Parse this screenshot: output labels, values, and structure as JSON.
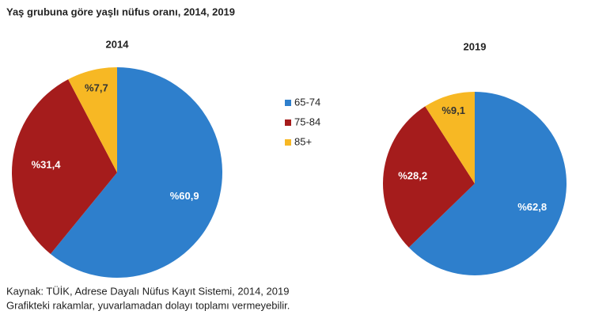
{
  "title": "Yaş grubuna göre yaşlı nüfus oranı, 2014, 2019",
  "notes": [
    "Kaynak: TÜİK, Adrese Dayalı Nüfus Kayıt Sistemi, 2014, 2019",
    "Grafikteki rakamlar, yuvarlamadan dolayı toplamı vermeyebilir."
  ],
  "chart_data": [
    {
      "type": "pie",
      "title": "2014",
      "categories": [
        "65-74",
        "75-84",
        "85+"
      ],
      "values": [
        60.9,
        31.4,
        7.7
      ],
      "value_labels": [
        "%60,9",
        "%31,4",
        "%7,7"
      ],
      "colors": [
        "#2e7fcc",
        "#a51c1c",
        "#f7b824"
      ]
    },
    {
      "type": "pie",
      "title": "2019",
      "categories": [
        "65-74",
        "75-84",
        "85+"
      ],
      "values": [
        62.8,
        28.2,
        9.1
      ],
      "value_labels": [
        "%62,8",
        "%28,2",
        "%9,1"
      ],
      "colors": [
        "#2e7fcc",
        "#a51c1c",
        "#f7b824"
      ]
    }
  ]
}
